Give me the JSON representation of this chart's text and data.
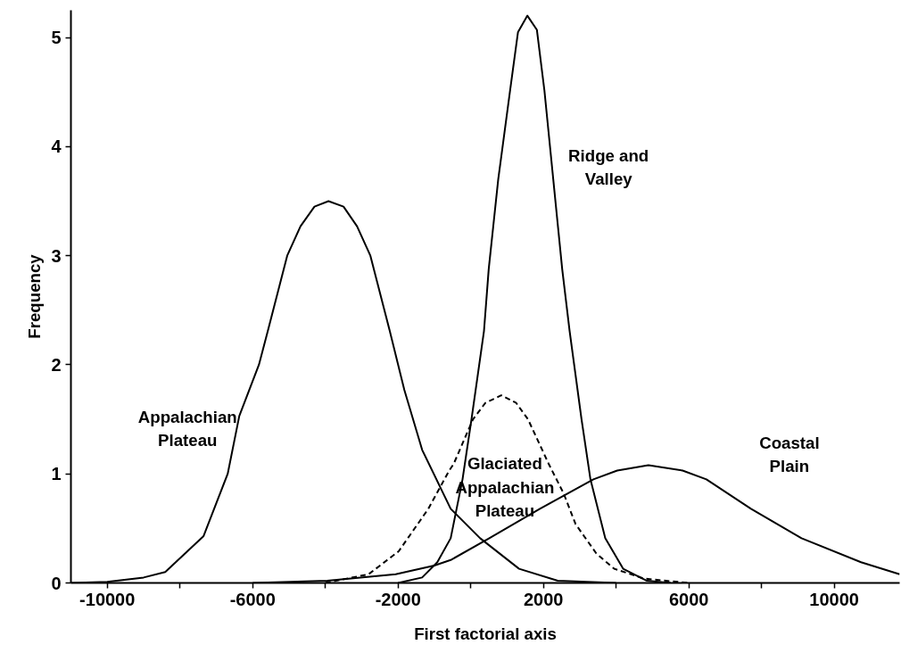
{
  "chart_data": {
    "type": "line",
    "xlabel": "First factorial axis",
    "ylabel": "Frequency",
    "xlim": [
      -11000,
      11800
    ],
    "ylim": [
      0,
      5.25
    ],
    "xticks": [
      {
        "value": -10000,
        "label": "-10000"
      },
      {
        "value": -8000,
        "label": null
      },
      {
        "value": -6000,
        "label": "-6000"
      },
      {
        "value": -4000,
        "label": null
      },
      {
        "value": -2000,
        "label": "-2000"
      },
      {
        "value": 0,
        "label": null
      },
      {
        "value": 2000,
        "label": "2000"
      },
      {
        "value": 4000,
        "label": null
      },
      {
        "value": 6000,
        "label": "6000"
      },
      {
        "value": 8000,
        "label": null
      },
      {
        "value": 10000,
        "label": "10000"
      }
    ],
    "yticks": [
      0,
      1,
      2,
      3,
      4,
      5
    ],
    "grid": false,
    "legend": false,
    "line_style": "solid",
    "series": [
      {
        "name": "Appalachian\nPlateau",
        "color": "#000000",
        "x": [
          -11000,
          -10000,
          -9000,
          -8405,
          -7350,
          -6687,
          -6368,
          -5828,
          -5583,
          -5050,
          -4683,
          -4300,
          -3914,
          -3500,
          -3129,
          -2761,
          -2228,
          -1828,
          -1337,
          -552,
          258,
          1330,
          2393,
          4000
        ],
        "values": [
          0.0,
          0.01,
          0.05,
          0.1,
          0.43,
          1.0,
          1.53,
          2.0,
          2.31,
          3.0,
          3.27,
          3.45,
          3.5,
          3.45,
          3.27,
          3.0,
          2.31,
          1.77,
          1.22,
          0.68,
          0.41,
          0.13,
          0.02,
          0.0
        ]
      },
      {
        "name": "Ridge and\nValley",
        "color": "#000000",
        "x": [
          -2000,
          -1337,
          -920,
          -552,
          -226,
          20,
          364,
          495,
          756,
          1084,
          1300,
          1558,
          1820,
          2025,
          2270,
          2515,
          2720,
          3048,
          3293,
          3700,
          4192,
          4847,
          5500
        ],
        "values": [
          0.0,
          0.05,
          0.19,
          0.41,
          0.95,
          1.5,
          2.31,
          2.88,
          3.7,
          4.52,
          5.05,
          5.2,
          5.07,
          4.52,
          3.7,
          2.88,
          2.31,
          1.5,
          0.95,
          0.41,
          0.13,
          0.02,
          0.0
        ]
      },
      {
        "name": "Glaciated\nAppalachian\nPlateau",
        "color": "#000000",
        "line_style": "dashed",
        "x": [
          -4000,
          -2810,
          -1983,
          -1166,
          -594,
          -471,
          61,
          400,
          839,
          1250,
          1575,
          2147,
          2556,
          2883,
          3455,
          3946,
          4765,
          6000
        ],
        "values": [
          0.0,
          0.08,
          0.29,
          0.68,
          1.03,
          1.09,
          1.5,
          1.65,
          1.72,
          1.65,
          1.5,
          1.09,
          0.82,
          0.54,
          0.27,
          0.13,
          0.04,
          0.0
        ]
      },
      {
        "name": "Coastal\nPlain",
        "color": "#000000",
        "x": [
          -6000,
          -3946,
          -2066,
          -1002,
          -552,
          510,
          1902,
          3374,
          4029,
          4888,
          5828,
          6483,
          7710,
          9100,
          10736,
          11800
        ],
        "values": [
          0.0,
          0.02,
          0.08,
          0.16,
          0.21,
          0.41,
          0.68,
          0.95,
          1.03,
          1.08,
          1.03,
          0.95,
          0.68,
          0.41,
          0.19,
          0.08
        ]
      }
    ]
  }
}
